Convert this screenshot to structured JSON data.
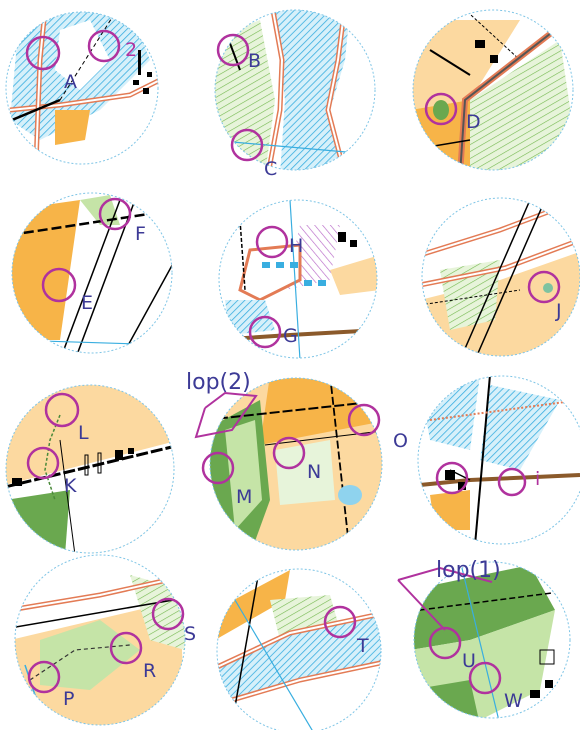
{
  "labels": {
    "A": "A",
    "B": "B",
    "C": "C",
    "D": "D",
    "E": "E",
    "F": "F",
    "G": "G",
    "H": "H",
    "J": "J",
    "K": "K",
    "L": "L",
    "M": "M",
    "N": "N",
    "O": "O",
    "P": "P",
    "R": "R",
    "S": "S",
    "T": "T",
    "U": "U",
    "W": "W",
    "two": "2",
    "i": "i",
    "lop2": "lop(2)",
    "lop1": "lop(1)"
  },
  "colors": {
    "label": "#3c3a96",
    "control_circle": "#b0329e",
    "water_blue": "#8fd3ee",
    "open_land": "#fcd9a0",
    "rough_orange": "#f7b448",
    "green_light": "#c5e4a7",
    "green_dark": "#6aa84f",
    "path_red": "#e37b55",
    "frame_dotted": "#7fc5e6"
  }
}
